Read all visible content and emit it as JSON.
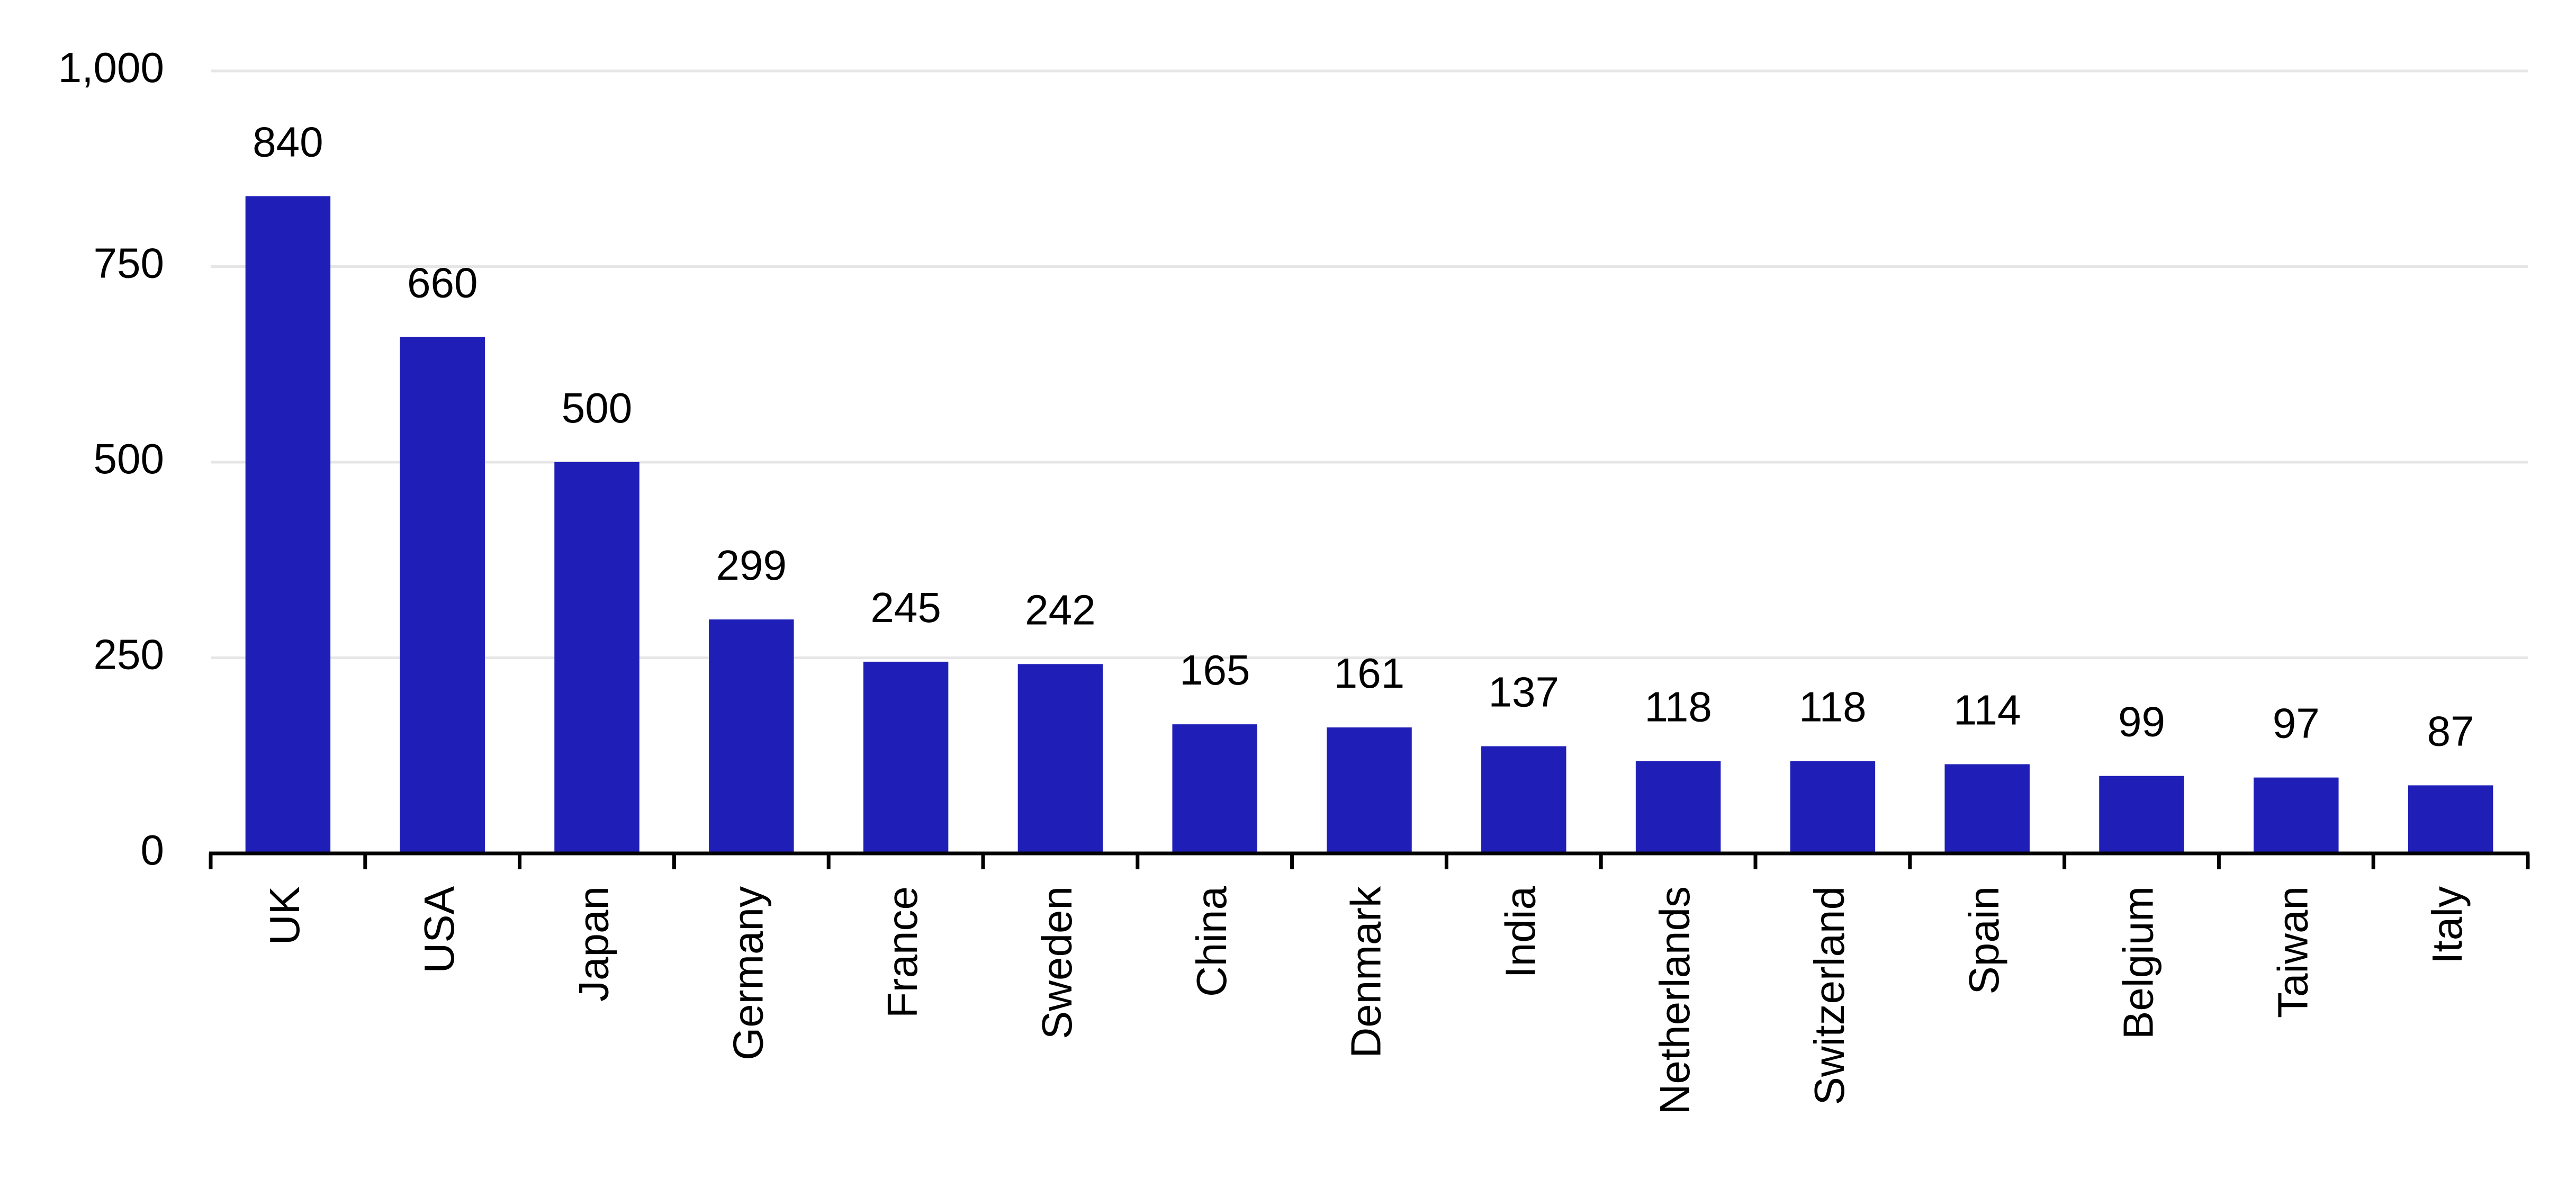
{
  "chart_data": {
    "type": "bar",
    "categories": [
      "UK",
      "USA",
      "Japan",
      "Germany",
      "France",
      "Sweden",
      "China",
      "Denmark",
      "India",
      "Netherlands",
      "Switzerland",
      "Spain",
      "Belgium",
      "Taiwan",
      "Italy"
    ],
    "values": [
      840,
      660,
      500,
      299,
      245,
      242,
      165,
      161,
      137,
      118,
      118,
      114,
      99,
      97,
      87
    ],
    "data_labels": [
      "840",
      "660",
      "500",
      "299",
      "245",
      "242",
      "165",
      "161",
      "137",
      "118",
      "118",
      "114",
      "99",
      "97",
      "87"
    ],
    "y_ticks": [
      0,
      250,
      500,
      750,
      1000
    ],
    "y_tick_labels": [
      "0",
      "250",
      "500",
      "750",
      "1,000"
    ],
    "ylim": [
      0,
      1000
    ],
    "title": "",
    "xlabel": "",
    "ylabel": "",
    "grid": "horizontal",
    "legend": "none",
    "bar_color": "#1f1fb8",
    "grid_color": "#e6e6e6",
    "axis_color": "#000000"
  }
}
